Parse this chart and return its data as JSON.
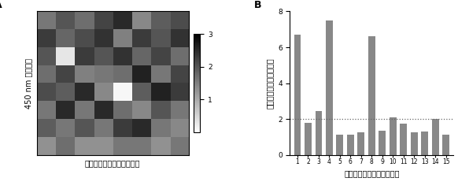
{
  "heatmap": [
    [
      1.6,
      2.0,
      1.7,
      2.2,
      2.5,
      1.4,
      1.9,
      2.1
    ],
    [
      2.3,
      1.8,
      2.1,
      2.4,
      1.5,
      2.3,
      2.0,
      2.4
    ],
    [
      2.0,
      0.3,
      2.3,
      2.0,
      2.4,
      1.8,
      2.2,
      1.7
    ],
    [
      1.7,
      2.2,
      1.5,
      1.6,
      1.7,
      2.6,
      1.6,
      2.2
    ],
    [
      2.1,
      1.9,
      2.5,
      1.4,
      0.1,
      1.9,
      2.6,
      2.3
    ],
    [
      1.6,
      2.5,
      1.6,
      2.5,
      1.7,
      1.4,
      2.0,
      1.6
    ],
    [
      1.9,
      1.6,
      2.0,
      1.6,
      2.3,
      2.5,
      1.6,
      1.4
    ],
    [
      1.3,
      1.7,
      1.3,
      1.3,
      1.6,
      1.6,
      1.3,
      1.6
    ]
  ],
  "bar_values": [
    6.7,
    1.8,
    2.45,
    7.5,
    1.15,
    1.15,
    1.25,
    6.6,
    1.35,
    2.1,
    1.75,
    1.25,
    1.3,
    2.0,
    1.15
  ],
  "bar_color": "#888888",
  "dotted_line_y": 2.0,
  "bar_xlabel": "第三轮筛选后的单个噬菌体",
  "heatmap_xlabel": "第三轮筛选后的单个噬菌体",
  "heatmap_ylabel": "450 nm 吸光度值",
  "bar_ylabel": "与空白对照的吸光度比值",
  "colorbar_ticks": [
    1,
    2,
    3
  ],
  "vmin": 0,
  "vmax": 3,
  "ylim_bar": [
    0,
    8
  ],
  "yticks_bar": [
    0,
    2,
    4,
    6,
    8
  ],
  "label_A": "A",
  "label_B": "B",
  "bg_color": "#ffffff",
  "font_size_label": 7,
  "font_size_panel": 9
}
